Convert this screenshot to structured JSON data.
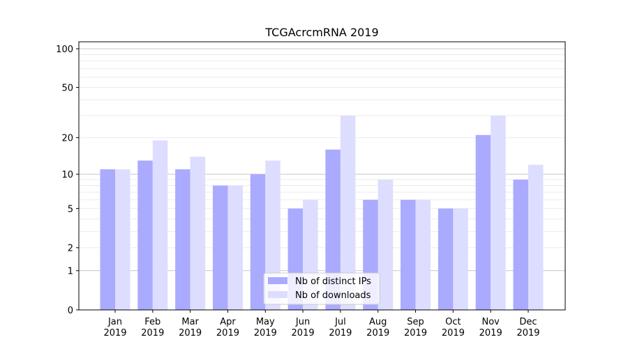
{
  "chart_data": {
    "type": "bar",
    "title": "TCGAcrcmRNA 2019",
    "xlabel": "",
    "ylabel": "",
    "yscale": "log(1+x)",
    "ylim": [
      0,
      113
    ],
    "yticks": [
      0,
      1,
      2,
      5,
      10,
      20,
      50,
      100
    ],
    "ytick_labels": [
      "0",
      "1",
      "2",
      "5",
      "10",
      "20",
      "50",
      "100"
    ],
    "categories": [
      [
        "Jan",
        "2019"
      ],
      [
        "Feb",
        "2019"
      ],
      [
        "Mar",
        "2019"
      ],
      [
        "Apr",
        "2019"
      ],
      [
        "May",
        "2019"
      ],
      [
        "Jun",
        "2019"
      ],
      [
        "Jul",
        "2019"
      ],
      [
        "Aug",
        "2019"
      ],
      [
        "Sep",
        "2019"
      ],
      [
        "Oct",
        "2019"
      ],
      [
        "Nov",
        "2019"
      ],
      [
        "Dec",
        "2019"
      ]
    ],
    "series": [
      {
        "name": "Nb of distinct IPs",
        "color": "#aaaaff",
        "values": [
          11,
          13,
          11,
          8,
          10,
          5,
          16,
          6,
          6,
          5,
          21,
          9
        ]
      },
      {
        "name": "Nb of downloads",
        "color": "#ddddff",
        "values": [
          11,
          19,
          14,
          8,
          13,
          6,
          30,
          9,
          6,
          5,
          30,
          12
        ]
      }
    ],
    "grid": true,
    "legend_position": "bottom-center"
  }
}
